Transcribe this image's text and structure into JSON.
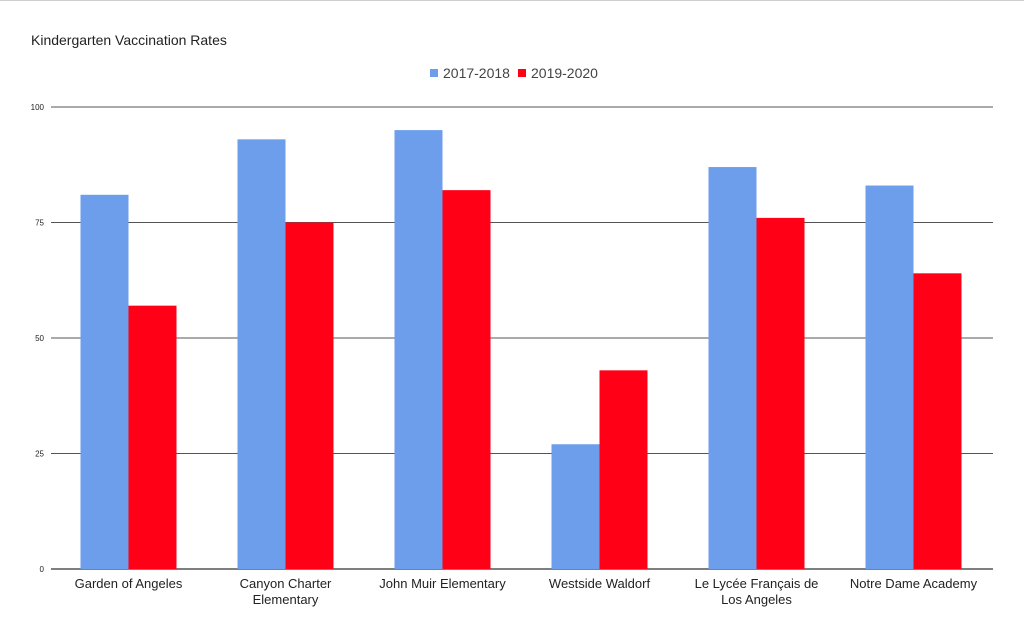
{
  "chart_data": {
    "type": "bar",
    "title": "Kindergarten Vaccination Rates",
    "categories": [
      [
        "Garden of Angeles"
      ],
      [
        "Canyon Charter",
        "Elementary"
      ],
      [
        "John Muir Elementary"
      ],
      [
        "Westside Waldorf"
      ],
      [
        "Le Lycée Français de",
        "Los Angeles"
      ],
      [
        "Notre Dame Academy"
      ]
    ],
    "series": [
      {
        "name": "2017-2018",
        "color": "#6d9eeb",
        "values": [
          81,
          93,
          95,
          27,
          87,
          83
        ]
      },
      {
        "name": "2019-2020",
        "color": "#ff0016",
        "values": [
          57,
          75,
          82,
          43,
          76,
          64
        ]
      }
    ],
    "yticks": [
      "0",
      "25",
      "50",
      "75",
      "100"
    ],
    "ylim": [
      0,
      100
    ],
    "grid": true,
    "legend_position": "top-center"
  }
}
